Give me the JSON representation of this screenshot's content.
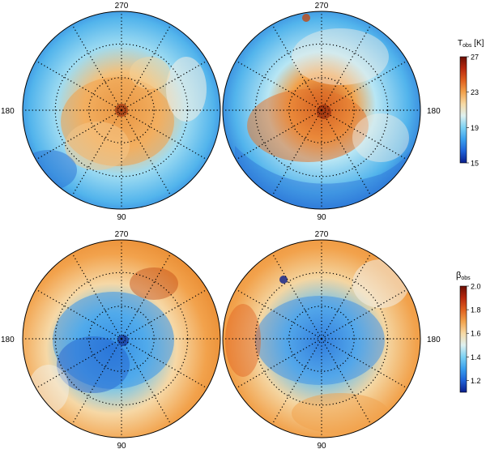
{
  "rows": [
    {
      "colorbar": {
        "title_main": "T",
        "title_sub": "obs",
        "title_suffix": " [K]",
        "ticks": [
          "27",
          "23",
          "19",
          "15"
        ],
        "tick_values": [
          27,
          23,
          19,
          15
        ],
        "range": [
          15,
          27
        ],
        "colors": [
          "#0a1e8c",
          "#1f62d8",
          "#3aa0ee",
          "#7cd2f4",
          "#dff1f0",
          "#f7d9a3",
          "#f2a24c",
          "#e0601f",
          "#b8280e",
          "#6b0f05"
        ]
      },
      "maps": [
        {
          "top": "270",
          "bottom": "90",
          "left": "180",
          "right": ""
        },
        {
          "top": "270",
          "bottom": "90",
          "left": "",
          "right": "180"
        }
      ]
    },
    {
      "colorbar": {
        "title_main": "β",
        "title_sub": "obs",
        "title_suffix": "",
        "ticks": [
          "2.0",
          "1.8",
          "1.6",
          "1.4",
          "1.2"
        ],
        "tick_values": [
          2.0,
          1.8,
          1.6,
          1.4,
          1.2
        ],
        "range": [
          1.1,
          2.0
        ],
        "colors": [
          "#0a1e8c",
          "#1f62d8",
          "#3aa0ee",
          "#7cd2f4",
          "#dff1f0",
          "#f7d9a3",
          "#f2a24c",
          "#e0601f",
          "#b8280e",
          "#6b0f05"
        ]
      },
      "maps": [
        {
          "top": "270",
          "bottom": "90",
          "left": "180",
          "right": ""
        },
        {
          "top": "270",
          "bottom": "90",
          "left": "",
          "right": "180"
        }
      ]
    }
  ]
}
